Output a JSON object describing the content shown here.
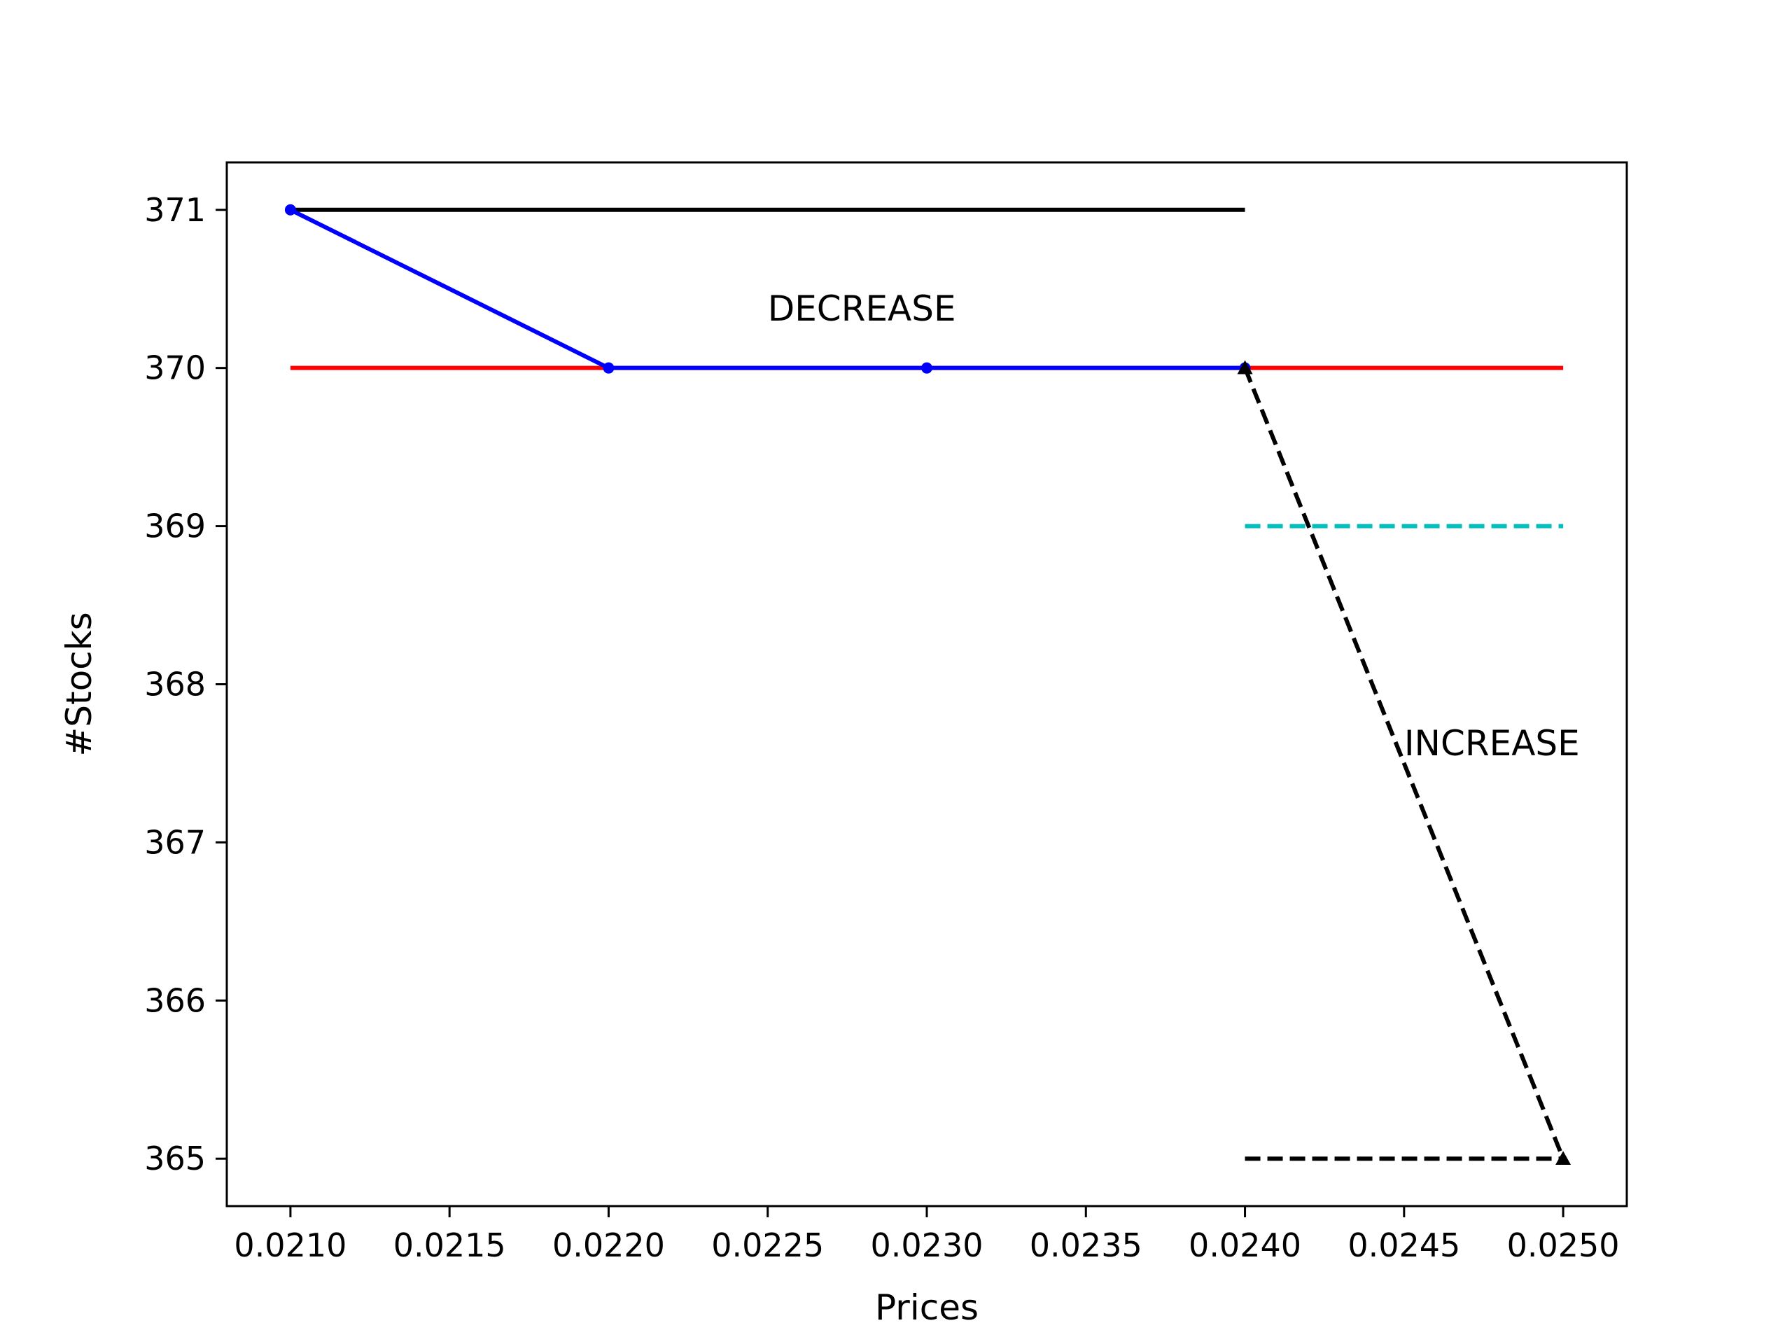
{
  "chart_data": {
    "type": "line",
    "title": "",
    "xlabel": "Prices",
    "ylabel": "#Stocks",
    "xlim": [
      0.0208,
      0.0252
    ],
    "ylim": [
      364.7,
      371.3
    ],
    "grid": false,
    "x_ticks": [
      0.021,
      0.0215,
      0.022,
      0.0225,
      0.023,
      0.0235,
      0.024,
      0.0245,
      0.025
    ],
    "x_tick_labels": [
      "0.0210",
      "0.0215",
      "0.0220",
      "0.0225",
      "0.0230",
      "0.0235",
      "0.0240",
      "0.0245",
      "0.0250"
    ],
    "y_ticks": [
      365,
      366,
      367,
      368,
      369,
      370,
      371
    ],
    "y_tick_labels": [
      "365",
      "366",
      "367",
      "368",
      "369",
      "370",
      "371"
    ],
    "series": [
      {
        "x": [
          0.021,
          0.024
        ],
        "y": [
          371,
          371
        ],
        "color": "#000000",
        "style": "solid",
        "marker": "none"
      },
      {
        "x": [
          0.021,
          0.025
        ],
        "y": [
          370,
          370
        ],
        "color": "#ff0000",
        "style": "solid",
        "marker": "none"
      },
      {
        "x": [
          0.021,
          0.022,
          0.023,
          0.024
        ],
        "y": [
          371,
          370,
          370,
          370
        ],
        "color": "#0000ff",
        "style": "solid",
        "marker": "dot"
      },
      {
        "x": [
          0.024,
          0.025
        ],
        "y": [
          369,
          369
        ],
        "color": "#00bfbf",
        "style": "dashed",
        "marker": "none"
      },
      {
        "x": [
          0.024,
          0.025
        ],
        "y": [
          365,
          365
        ],
        "color": "#000000",
        "style": "dashed",
        "marker": "none"
      },
      {
        "x": [
          0.024,
          0.025
        ],
        "y": [
          370,
          365
        ],
        "color": "#000000",
        "style": "dashed",
        "marker": "triangle"
      }
    ],
    "annotations": [
      {
        "text": "DECREASE",
        "x": 0.0225,
        "y": 370.3
      },
      {
        "text": "INCREASE",
        "x": 0.0245,
        "y": 367.55
      }
    ]
  }
}
